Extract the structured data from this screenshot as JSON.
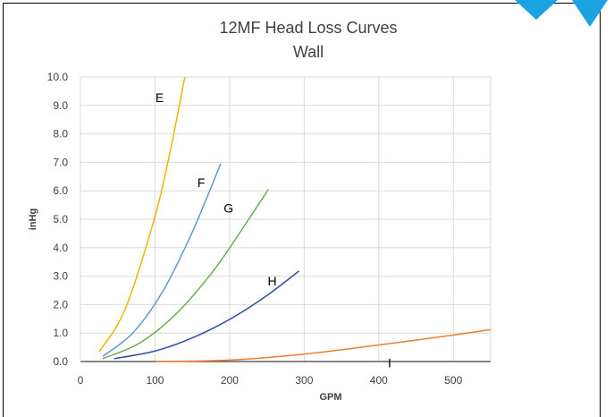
{
  "chart_data": {
    "type": "line",
    "title": "12MF Head Loss Curves",
    "subtitle": "Wall",
    "xlabel": "GPM",
    "ylabel": "inHg",
    "xlim": [
      0,
      550
    ],
    "ylim": [
      0,
      10
    ],
    "x_ticks": [
      "0",
      "100",
      "200",
      "300",
      "400",
      "500"
    ],
    "y_ticks": [
      "0.0",
      "1.0",
      "2.0",
      "3.0",
      "4.0",
      "5.0",
      "6.0",
      "7.0",
      "8.0",
      "9.0",
      "10.0"
    ],
    "grid": true,
    "legend": "none",
    "series": [
      {
        "name": "E",
        "color": "#f0b400",
        "x": [
          25,
          60,
          100,
          120,
          140
        ],
        "y": [
          0.34,
          1.84,
          5.1,
          7.35,
          10.0
        ]
      },
      {
        "name": "F",
        "color": "#5b9bd5",
        "x": [
          30,
          70,
          110,
          150,
          188
        ],
        "y": [
          0.18,
          1.0,
          2.45,
          4.55,
          6.95
        ]
      },
      {
        "name": "G",
        "color": "#70ad47",
        "x": [
          30,
          80,
          130,
          180,
          220,
          252
        ],
        "y": [
          0.1,
          0.66,
          1.72,
          3.25,
          4.78,
          6.05
        ]
      },
      {
        "name": "H",
        "color": "#2e4fa0",
        "x": [
          45,
          100,
          150,
          200,
          250,
          293
        ],
        "y": [
          0.1,
          0.37,
          0.83,
          1.48,
          2.32,
          3.18
        ]
      },
      {
        "name": "I",
        "color": "#ed7d31",
        "x": [
          100,
          200,
          300,
          400,
          500,
          550
        ],
        "y": [
          0.0,
          0.05,
          0.26,
          0.58,
          0.93,
          1.12
        ]
      }
    ]
  }
}
